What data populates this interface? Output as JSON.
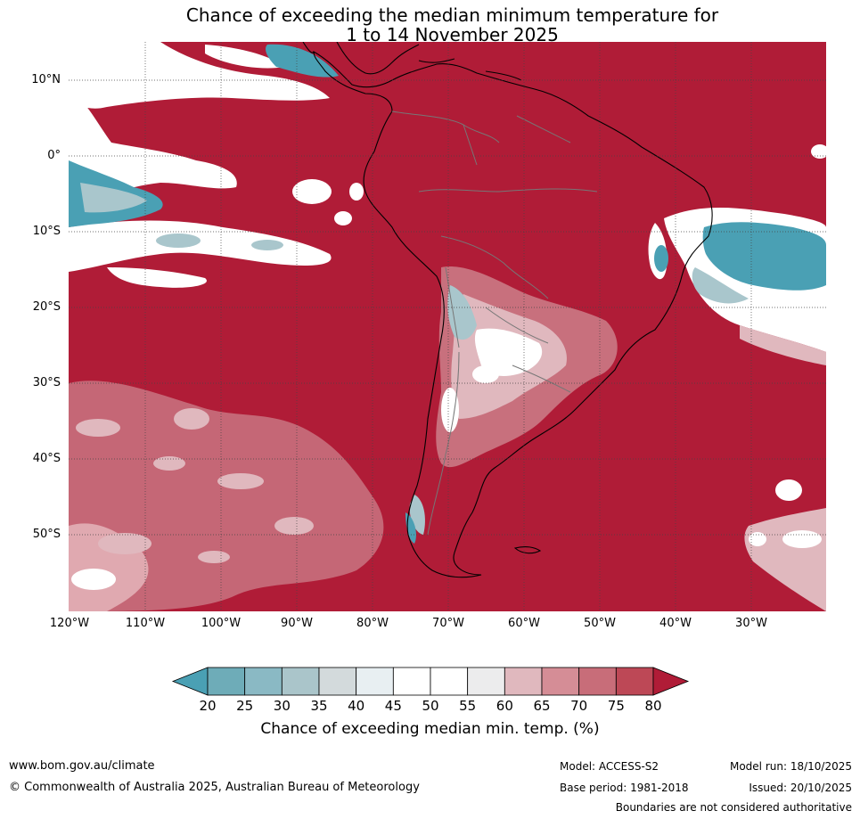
{
  "title": {
    "line1": "Chance of exceeding the median minimum temperature for",
    "line2": "1 to 14 November 2025"
  },
  "map": {
    "lat_labels": [
      "10°N",
      "0°",
      "10°S",
      "20°S",
      "30°S",
      "40°S",
      "50°S"
    ],
    "lon_labels": [
      "120°W",
      "110°W",
      "100°W",
      "90°W",
      "80°W",
      "70°W",
      "60°W",
      "50°W",
      "40°W",
      "30°W"
    ],
    "colors": {
      "dominant": "#b01c37",
      "teal": "#4aa0b4",
      "light_teal": "#a9c6cc",
      "white": "#ffffff",
      "pink": "#c8707d"
    }
  },
  "colorbar": {
    "ticks": [
      "20",
      "25",
      "30",
      "35",
      "40",
      "45",
      "50",
      "55",
      "60",
      "65",
      "70",
      "75",
      "80"
    ],
    "colors": [
      "#4aa0b4",
      "#6eacb8",
      "#8ab9c4",
      "#aac5ca",
      "#d3dadc",
      "#e8eff2",
      "#ffffff",
      "#ffffff",
      "#ececed",
      "#e0b8be",
      "#d58d96",
      "#c86d79",
      "#bd4856",
      "#b01c37"
    ],
    "title": "Chance of exceeding median min. temp. (%)"
  },
  "footer": {
    "website": "www.bom.gov.au/climate",
    "copyright": "© Commonwealth of Australia 2025, Australian Bureau of Meteorology",
    "model": "Model: ACCESS-S2",
    "base_period": "Base period: 1981-2018",
    "model_run": "Model run: 18/10/2025",
    "issued": "Issued: 20/10/2025",
    "disclaimer": "Boundaries are not considered authoritative"
  }
}
